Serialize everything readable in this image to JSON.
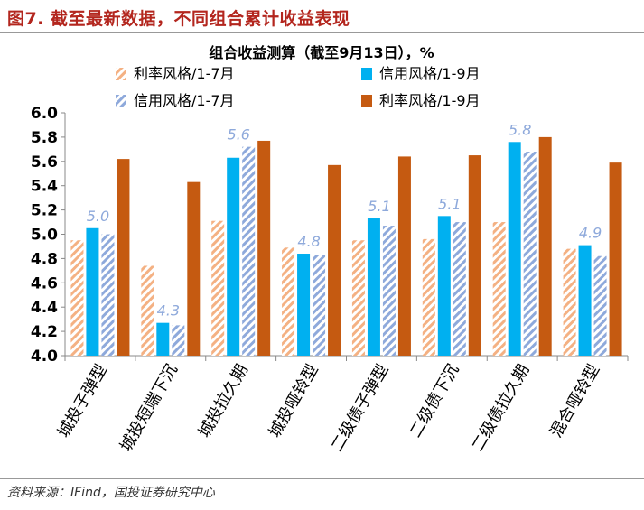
{
  "figure_title": "图7. 截至最新数据，不同组合累计收益表现",
  "source": "资料来源：IFind，国投证券研究中心",
  "colors": {
    "title": "#b3261e",
    "rate_hatch": "#f4b183",
    "credit_solid": "#00b0f0",
    "credit_hatch": "#8ea9db",
    "rate_solid": "#c55a11",
    "label": "#8ea9db"
  },
  "chart_data": {
    "type": "bar",
    "title": "组合收益测算（截至9月13日），%",
    "categories": [
      "城投子弹型",
      "城投短端下沉",
      "城投拉久期",
      "城投哑铃型",
      "二级债子弹型",
      "二级债下沉",
      "二级债拉久期",
      "混合哑铃型"
    ],
    "series": [
      {
        "name": "利率风格/1-7月",
        "style": "hatch",
        "color": "#f4b183",
        "values": [
          4.95,
          4.74,
          5.11,
          4.89,
          4.95,
          4.96,
          5.1,
          4.88
        ]
      },
      {
        "name": "信用风格/1-9月",
        "style": "solid",
        "color": "#00b0f0",
        "values": [
          5.05,
          4.27,
          5.63,
          4.84,
          5.13,
          5.15,
          5.76,
          4.91
        ]
      },
      {
        "name": "信用风格/1-7月",
        "style": "hatch",
        "color": "#8ea9db",
        "values": [
          5.0,
          4.25,
          5.72,
          4.83,
          5.07,
          5.1,
          5.68,
          4.82
        ]
      },
      {
        "name": "利率风格/1-9月",
        "style": "solid",
        "color": "#c55a11",
        "values": [
          5.62,
          5.43,
          5.77,
          5.57,
          5.64,
          5.65,
          5.8,
          5.59
        ]
      }
    ],
    "data_labels": [
      "5.0",
      "4.3",
      "5.6",
      "4.8",
      "5.1",
      "5.1",
      "5.8",
      "4.9"
    ],
    "legend": [
      "利率风格/1-7月",
      "信用风格/1-9月",
      "信用风格/1-7月",
      "利率风格/1-9月"
    ],
    "ylim": [
      4.0,
      6.0
    ],
    "yticks": [
      "4.0",
      "4.2",
      "4.4",
      "4.6",
      "4.8",
      "5.0",
      "5.2",
      "5.4",
      "5.6",
      "5.8",
      "6.0"
    ],
    "xlabel": "",
    "ylabel": "",
    "grid": false
  }
}
